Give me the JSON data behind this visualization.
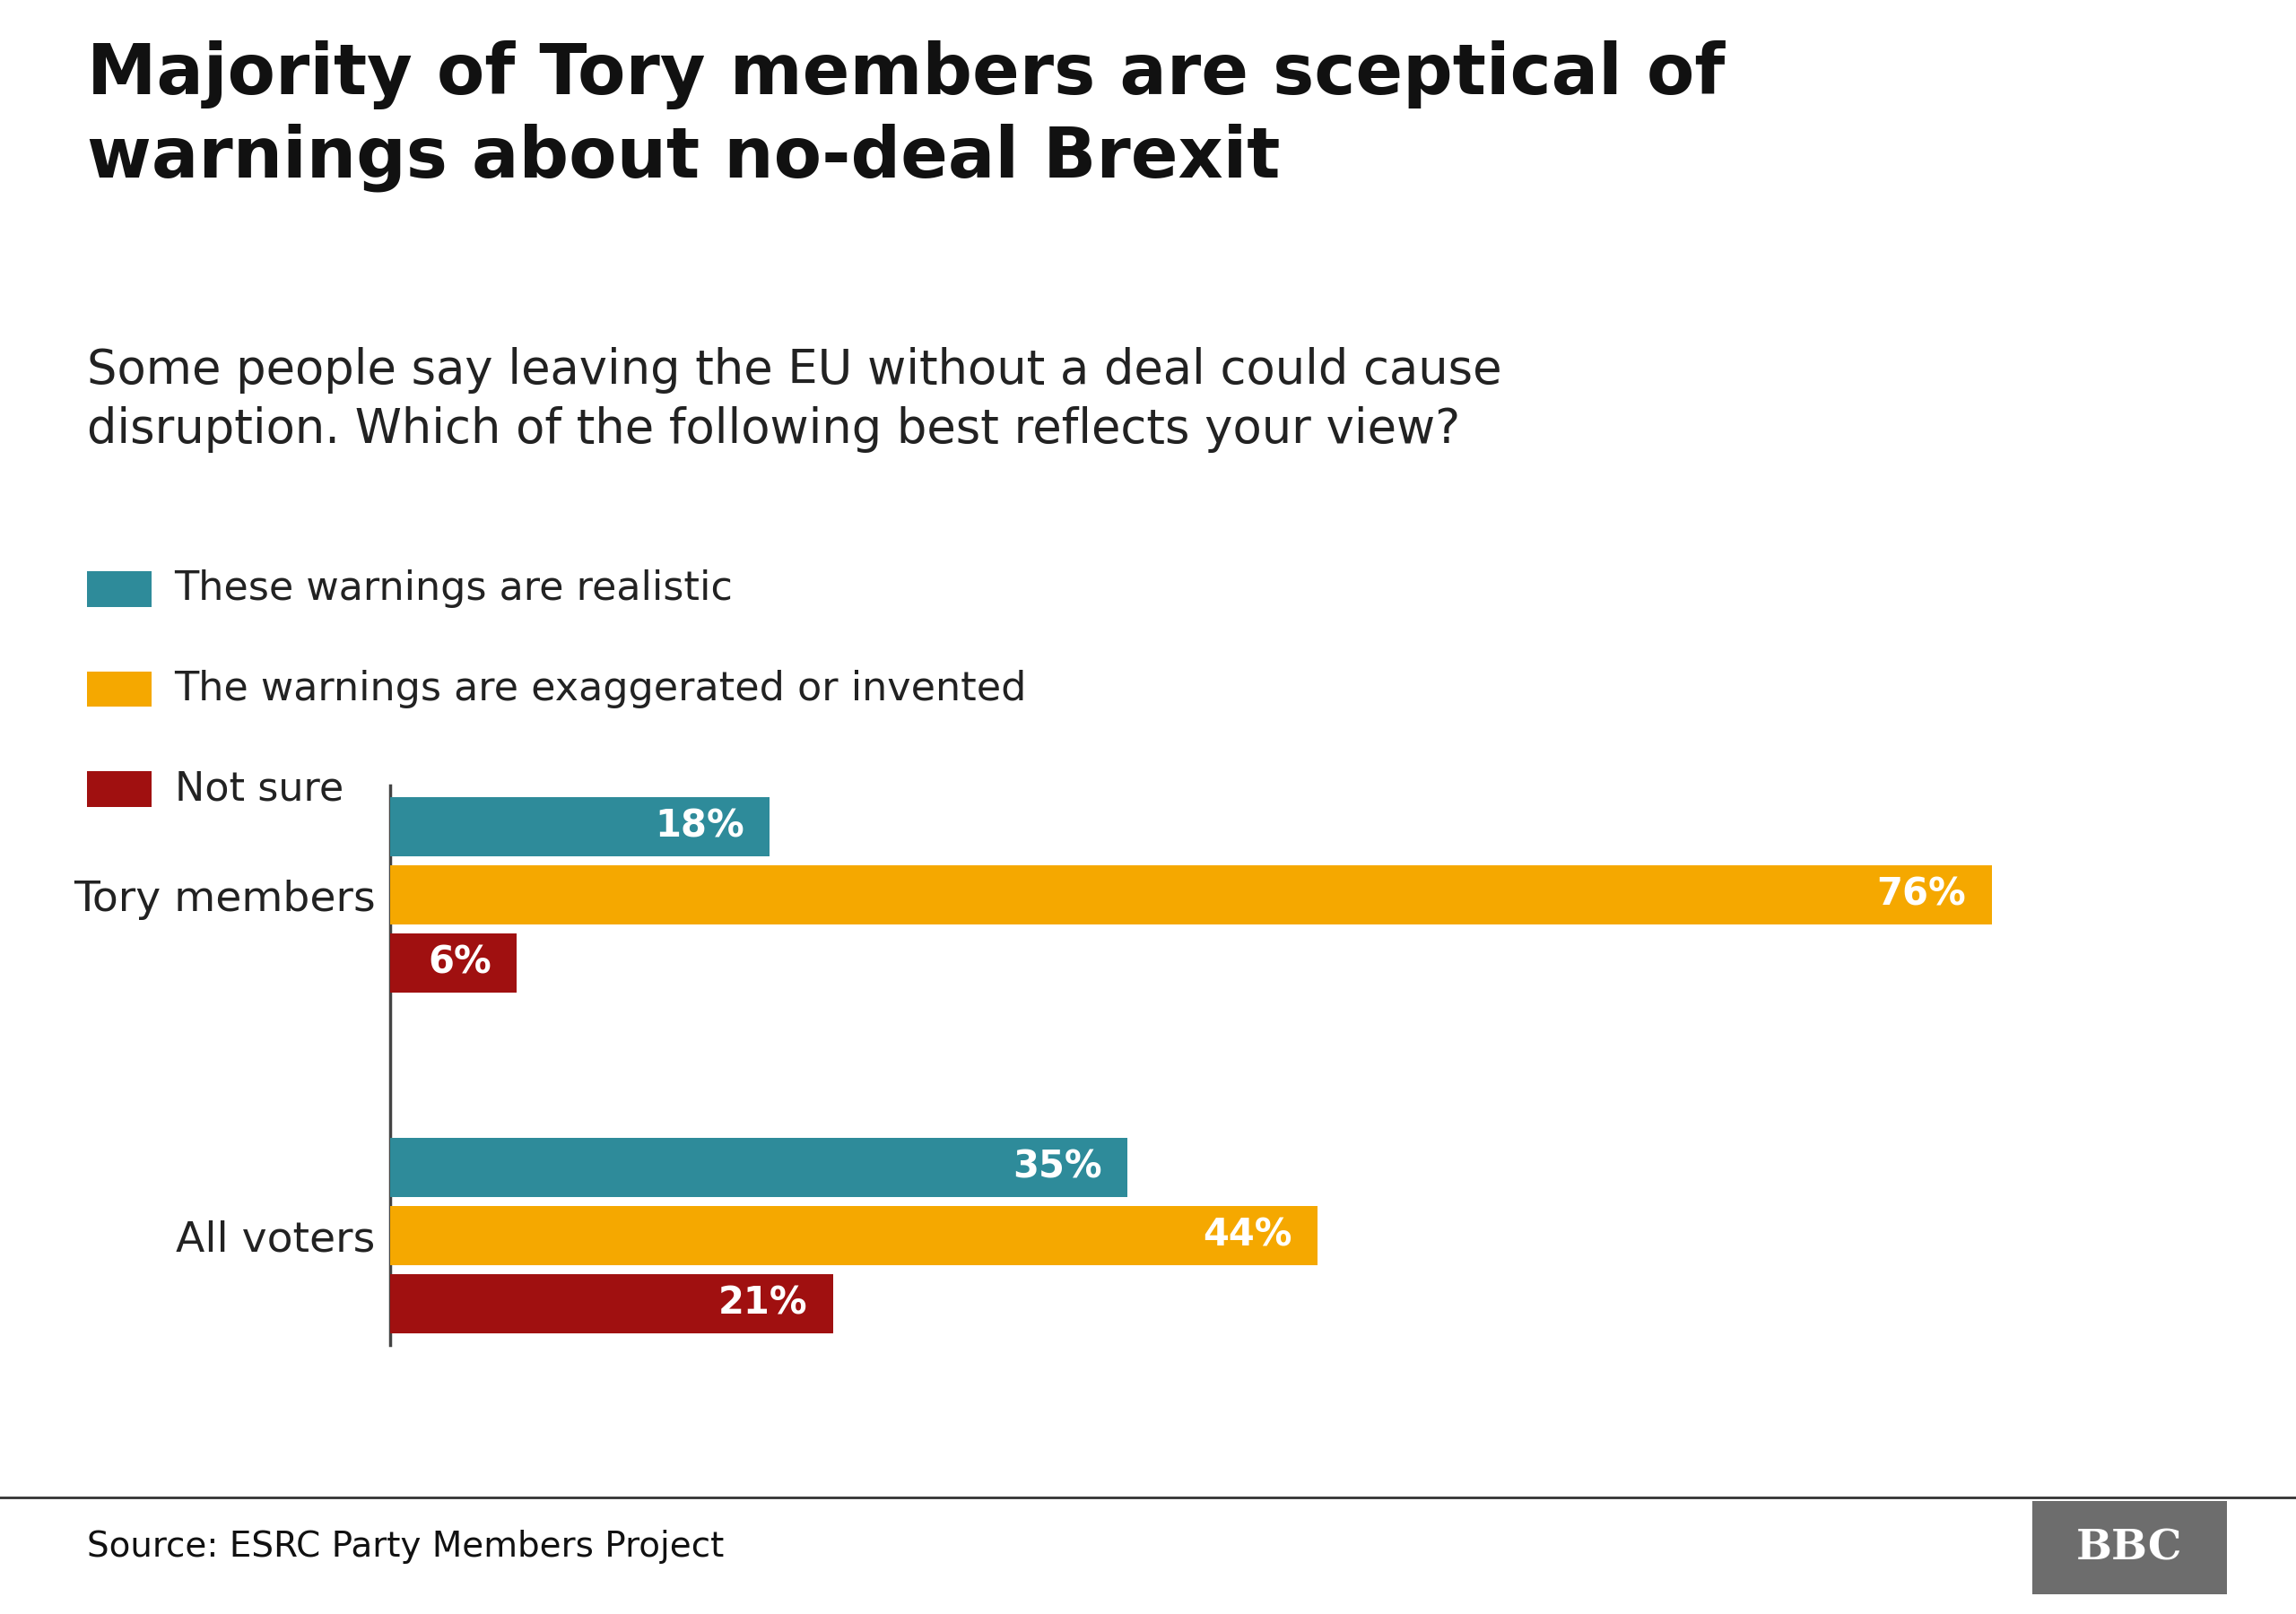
{
  "title": "Majority of Tory members are sceptical of\nwarnings about no-deal Brexit",
  "subtitle": "Some people say leaving the EU without a deal could cause\ndisruption. Which of the following best reflects your view?",
  "categories": [
    "Tory members",
    "All voters"
  ],
  "series": [
    {
      "label": "These warnings are realistic",
      "color": "#2e8b9a",
      "values": [
        18,
        35
      ]
    },
    {
      "label": "The warnings are exaggerated or invented",
      "color": "#f5a800",
      "values": [
        76,
        44
      ]
    },
    {
      "label": "Not sure",
      "color": "#a01010",
      "values": [
        6,
        21
      ]
    }
  ],
  "source": "Source: ESRC Party Members Project",
  "bbc_text": "BBC",
  "bbc_bg": "#6d6d6d",
  "footer_line_color": "#333333",
  "background_color": "#ffffff",
  "title_fontsize": 56,
  "subtitle_fontsize": 38,
  "legend_fontsize": 32,
  "bar_label_fontsize": 30,
  "ytick_fontsize": 34,
  "source_fontsize": 28,
  "bar_height": 0.2,
  "xlim": [
    0,
    85
  ]
}
